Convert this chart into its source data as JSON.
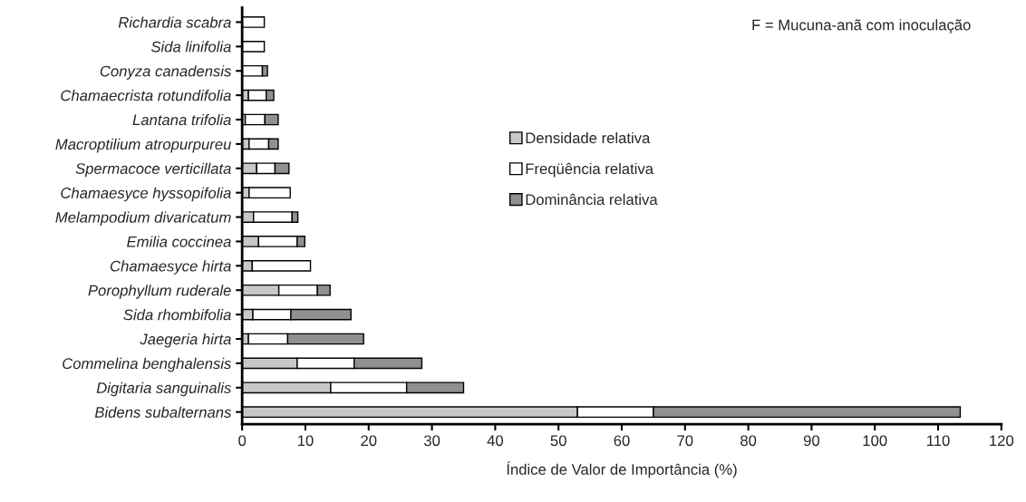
{
  "chart_data": {
    "type": "bar",
    "orientation": "horizontal",
    "stacked": true,
    "categories": [
      "Richardia scabra",
      "Sida linifolia",
      "Conyza canadensis",
      "Chamaecrista rotundifolia",
      "Lantana trifolia",
      "Macroptilium atropurpureu",
      "Spermacoce verticillata",
      "Chamaesyce hyssopifolia",
      "Melampodium divaricatum",
      "Emilia coccinea",
      "Chamaesyce hirta",
      "Porophyllum ruderale",
      "Sida rhombifolia",
      "Jaegeria hirta",
      "Commelina benghalensis",
      "Digitaria sanguinalis",
      "Bidens subalternans"
    ],
    "series": [
      {
        "name": "Densidade relativa",
        "color": "#c8c8c8",
        "values": [
          null,
          null,
          null,
          1.0,
          0.5,
          1.1,
          2.3,
          1.1,
          1.8,
          2.6,
          1.6,
          5.8,
          1.7,
          1.0,
          8.7,
          14,
          53
        ]
      },
      {
        "name": "Freqüência relativa",
        "color": "#ffffff",
        "values": [
          3.5,
          3.5,
          3.2,
          2.8,
          3.1,
          3.1,
          2.9,
          6.5,
          6.1,
          6.1,
          9.2,
          6.1,
          6.0,
          6.2,
          9.0,
          12,
          12
        ]
      },
      {
        "name": "Dominância relativa",
        "color": "#909090",
        "values": [
          null,
          null,
          0.8,
          1.2,
          2.1,
          1.5,
          2.2,
          null,
          0.9,
          1.2,
          null,
          2.0,
          9.5,
          12,
          10.7,
          9,
          48.5
        ]
      }
    ],
    "xlim": [
      0,
      120
    ],
    "xticks": [
      0,
      10,
      20,
      30,
      40,
      50,
      60,
      70,
      80,
      90,
      100,
      110,
      120
    ],
    "xlabel": "Índice de Valor de Importância (%)",
    "annotations": [
      "F = Mucuna-anã com inoculação"
    ],
    "legend": "center",
    "grid": false
  }
}
